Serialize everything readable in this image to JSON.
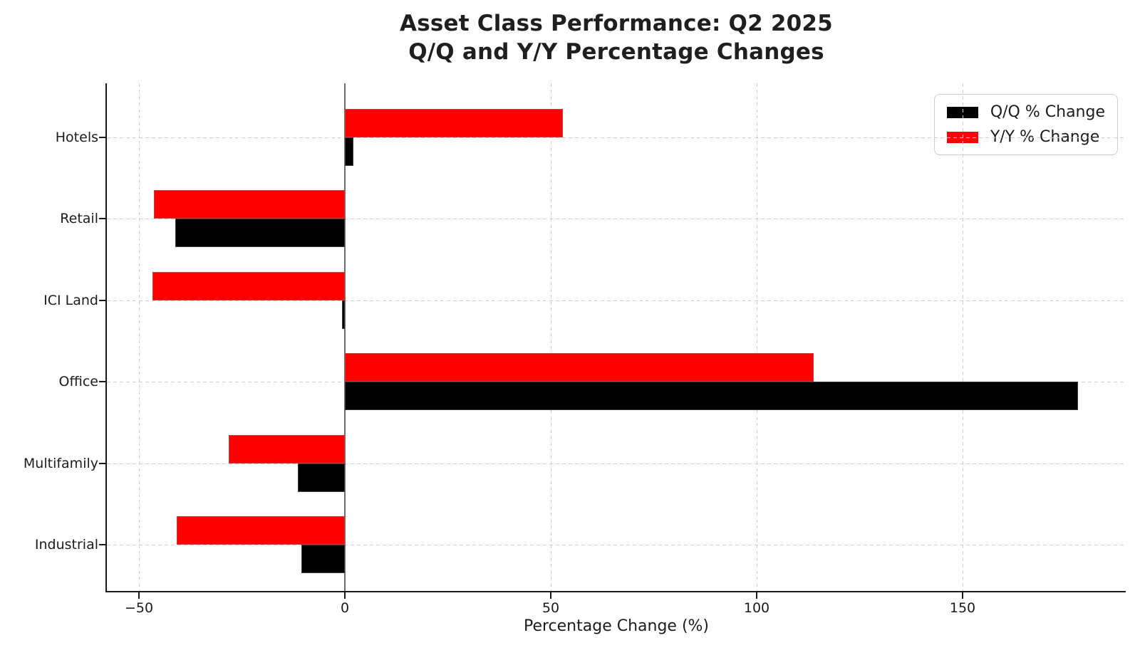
{
  "title": {
    "line1": "Asset Class Performance: Q2 2025",
    "line2": "Q/Q and Y/Y Percentage Changes"
  },
  "chart_data": {
    "type": "bar",
    "orientation": "horizontal",
    "title": "Asset Class Performance: Q2 2025\nQ/Q and Y/Y Percentage Changes",
    "categories": [
      "Hotels",
      "Retail",
      "ICI Land",
      "Office",
      "Multifamily",
      "Industrial"
    ],
    "series": [
      {
        "name": "Q/Q % Change",
        "color": "#000000",
        "values": [
          2.0,
          -41.2,
          -0.7,
          178.0,
          -11.5,
          -10.5
        ]
      },
      {
        "name": "Y/Y % Change",
        "color": "#ff0000",
        "values": [
          52.9,
          -46.4,
          -46.7,
          113.8,
          -28.2,
          -40.8
        ]
      }
    ],
    "xlabel": "Percentage Change (%)",
    "ylabel": "",
    "x_ticks": [
      -50,
      0,
      50,
      100,
      150
    ],
    "x_tick_labels": [
      "−50",
      "0",
      "50",
      "100",
      "150"
    ],
    "xlim": [
      -58.3,
      189.3
    ],
    "grid": true,
    "grid_style": "dashed",
    "zero_line": true,
    "legend_position": "upper-right"
  },
  "colors": {
    "qq_series": "#000000",
    "yy_series": "#ff0000",
    "grid": "#cfcfcf",
    "zero_line": "#6e6e6e",
    "spine": "#1a1a1a",
    "text": "#1c1c1c",
    "legend_border": "#cccccc",
    "background": "#ffffff"
  }
}
